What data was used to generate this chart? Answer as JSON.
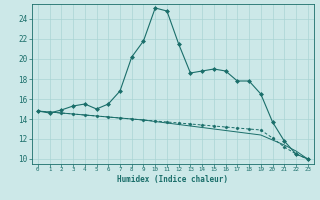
{
  "xlabel": "Humidex (Indice chaleur)",
  "ylabel": "",
  "background_color": "#cce8e8",
  "line_color": "#1a6e6a",
  "xlim": [
    -0.5,
    23.5
  ],
  "ylim": [
    9.5,
    25.5
  ],
  "xticks": [
    0,
    1,
    2,
    3,
    4,
    5,
    6,
    7,
    8,
    9,
    10,
    11,
    12,
    13,
    14,
    15,
    16,
    17,
    18,
    19,
    20,
    21,
    22,
    23
  ],
  "yticks": [
    10,
    12,
    14,
    16,
    18,
    20,
    22,
    24
  ],
  "grid_color": "#aad4d4",
  "series1_x": [
    0,
    1,
    2,
    3,
    4,
    5,
    6,
    7,
    8,
    9,
    10,
    11,
    12,
    13,
    14,
    15,
    16,
    17,
    18,
    19,
    20,
    21,
    22,
    23
  ],
  "series1_y": [
    14.8,
    14.6,
    14.9,
    15.3,
    15.5,
    15.0,
    15.5,
    16.8,
    20.2,
    21.8,
    25.1,
    24.8,
    21.5,
    18.6,
    18.8,
    19.0,
    18.8,
    17.8,
    17.8,
    16.5,
    13.7,
    11.8,
    10.5,
    10.0
  ],
  "series2_x": [
    0,
    1,
    2,
    3,
    4,
    5,
    6,
    7,
    8,
    9,
    10,
    11,
    12,
    13,
    14,
    15,
    16,
    17,
    18,
    19,
    20,
    21,
    22,
    23
  ],
  "series2_y": [
    14.8,
    14.7,
    14.6,
    14.5,
    14.4,
    14.3,
    14.2,
    14.1,
    14.0,
    13.9,
    13.8,
    13.7,
    13.6,
    13.5,
    13.4,
    13.3,
    13.2,
    13.1,
    13.0,
    12.9,
    12.1,
    11.2,
    10.5,
    10.0
  ],
  "series3_x": [
    0,
    1,
    2,
    3,
    4,
    5,
    6,
    7,
    8,
    9,
    10,
    11,
    12,
    13,
    14,
    15,
    16,
    17,
    18,
    19,
    20,
    21,
    22,
    23
  ],
  "series3_y": [
    14.8,
    14.7,
    14.6,
    14.5,
    14.4,
    14.3,
    14.2,
    14.1,
    14.0,
    13.9,
    13.75,
    13.6,
    13.45,
    13.3,
    13.15,
    13.0,
    12.85,
    12.7,
    12.55,
    12.4,
    11.9,
    11.4,
    10.8,
    10.0
  ]
}
